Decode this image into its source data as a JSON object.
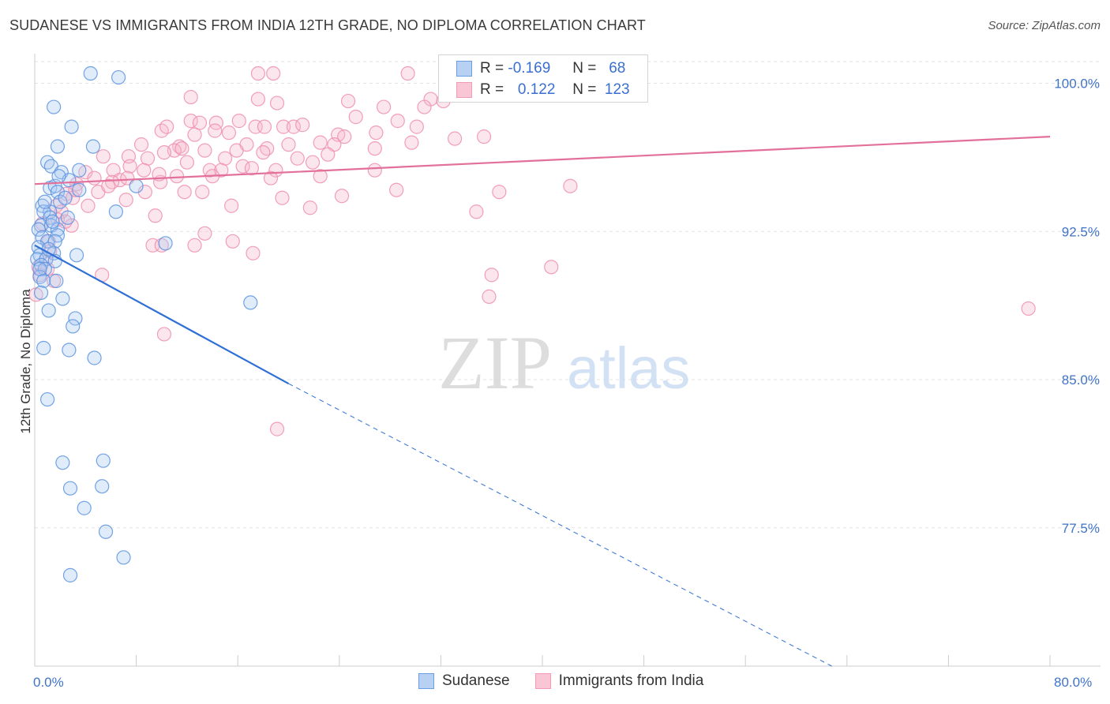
{
  "header": {
    "title": "SUDANESE VS IMMIGRANTS FROM INDIA 12TH GRADE, NO DIPLOMA CORRELATION CHART",
    "source": "Source: ZipAtlas.com"
  },
  "watermark": {
    "zip": "ZIP",
    "atlas": "atlas"
  },
  "legend": {
    "rows": [
      {
        "r_label": "R =",
        "r_value": "-0.169",
        "n_label": "N =",
        "n_value": "68",
        "color": "#6a9ee6"
      },
      {
        "r_label": "R =",
        "r_value": "0.122",
        "n_label": "N =",
        "n_value": "123",
        "color": "#f29ab6"
      }
    ]
  },
  "bottom_legend": [
    {
      "label": "Sudanese",
      "color": "#6a9ee6"
    },
    {
      "label": "Immigrants from India",
      "color": "#f29ab6"
    }
  ],
  "chart_data": {
    "type": "scatter",
    "title": "SUDANESE VS IMMIGRANTS FROM INDIA 12TH GRADE, NO DIPLOMA CORRELATION CHART",
    "xlabel": "",
    "ylabel": "12th Grade, No Diploma",
    "xlim": [
      0,
      80
    ],
    "ylim": [
      70.5,
      101.5
    ],
    "x_tick_labels": [
      "0.0%",
      "80.0%"
    ],
    "y_ticks": [
      77.5,
      85.0,
      92.5,
      100.0
    ],
    "y_tick_labels": [
      "77.5%",
      "85.0%",
      "92.5%",
      "100.0%"
    ],
    "series": [
      {
        "name": "Sudanese",
        "color": "#6a9ee6",
        "trend": {
          "x0": 0,
          "y0": 91.8,
          "x1": 20,
          "y1": 84.8,
          "dashed_to_x": 62.8,
          "dashed_to_y": 70.5
        },
        "points": [
          [
            4.4,
            100.5
          ],
          [
            6.6,
            100.3
          ],
          [
            1.5,
            98.8
          ],
          [
            2.9,
            97.8
          ],
          [
            4.6,
            96.8
          ],
          [
            1.8,
            96.8
          ],
          [
            1.0,
            96.0
          ],
          [
            1.3,
            95.8
          ],
          [
            2.1,
            95.5
          ],
          [
            3.5,
            95.6
          ],
          [
            2.7,
            95.1
          ],
          [
            1.2,
            94.7
          ],
          [
            1.6,
            94.8
          ],
          [
            1.8,
            94.5
          ],
          [
            3.5,
            94.6
          ],
          [
            8.0,
            94.8
          ],
          [
            2.0,
            94.0
          ],
          [
            2.4,
            94.2
          ],
          [
            0.6,
            93.8
          ],
          [
            1.2,
            93.5
          ],
          [
            0.7,
            93.5
          ],
          [
            1.2,
            93.2
          ],
          [
            6.4,
            93.5
          ],
          [
            0.5,
            92.8
          ],
          [
            1.3,
            92.8
          ],
          [
            1.8,
            92.6
          ],
          [
            1.8,
            92.3
          ],
          [
            0.3,
            92.6
          ],
          [
            0.6,
            92.2
          ],
          [
            1.0,
            92.0
          ],
          [
            1.6,
            92.0
          ],
          [
            10.3,
            91.9
          ],
          [
            0.3,
            91.7
          ],
          [
            0.4,
            91.3
          ],
          [
            1.5,
            91.4
          ],
          [
            3.3,
            91.3
          ],
          [
            0.2,
            91.1
          ],
          [
            0.9,
            91.1
          ],
          [
            1.6,
            91.0
          ],
          [
            0.5,
            90.8
          ],
          [
            0.8,
            90.6
          ],
          [
            0.4,
            90.2
          ],
          [
            0.7,
            90.0
          ],
          [
            1.7,
            90.0
          ],
          [
            2.2,
            89.1
          ],
          [
            17.0,
            88.9
          ],
          [
            1.1,
            88.5
          ],
          [
            3.2,
            88.1
          ],
          [
            3.0,
            87.7
          ],
          [
            0.7,
            86.6
          ],
          [
            2.7,
            86.5
          ],
          [
            4.7,
            86.1
          ],
          [
            1.0,
            84.0
          ],
          [
            2.2,
            80.8
          ],
          [
            5.4,
            80.9
          ],
          [
            2.8,
            79.5
          ],
          [
            5.3,
            79.6
          ],
          [
            3.9,
            78.5
          ],
          [
            5.6,
            77.3
          ],
          [
            7.0,
            76.0
          ],
          [
            2.8,
            75.1
          ],
          [
            0.5,
            89.4
          ],
          [
            1.4,
            93.0
          ],
          [
            1.9,
            95.3
          ],
          [
            0.8,
            94.0
          ],
          [
            2.6,
            93.2
          ],
          [
            1.1,
            91.6
          ],
          [
            0.4,
            90.6
          ]
        ]
      },
      {
        "name": "Immigrants from India",
        "color": "#f29ab6",
        "trend": {
          "x0": 0,
          "y0": 94.9,
          "x1": 80,
          "y1": 97.3
        },
        "points": [
          [
            17.6,
            100.5
          ],
          [
            18.8,
            100.5
          ],
          [
            29.4,
            100.5
          ],
          [
            12.3,
            99.3
          ],
          [
            17.6,
            99.2
          ],
          [
            19.1,
            99.0
          ],
          [
            24.7,
            99.1
          ],
          [
            27.5,
            98.8
          ],
          [
            31.2,
            99.2
          ],
          [
            32.2,
            99.1
          ],
          [
            25.3,
            98.3
          ],
          [
            12.3,
            98.1
          ],
          [
            13.0,
            98.0
          ],
          [
            14.3,
            98.0
          ],
          [
            16.1,
            98.1
          ],
          [
            17.4,
            97.8
          ],
          [
            18.1,
            97.8
          ],
          [
            19.6,
            97.8
          ],
          [
            20.4,
            97.8
          ],
          [
            21.1,
            97.9
          ],
          [
            28.6,
            98.1
          ],
          [
            30.1,
            97.8
          ],
          [
            10.0,
            97.6
          ],
          [
            12.6,
            97.4
          ],
          [
            14.2,
            97.6
          ],
          [
            15.3,
            97.5
          ],
          [
            23.9,
            97.4
          ],
          [
            24.4,
            97.3
          ],
          [
            33.1,
            97.2
          ],
          [
            8.4,
            96.9
          ],
          [
            11.4,
            96.8
          ],
          [
            11.0,
            96.6
          ],
          [
            16.7,
            96.9
          ],
          [
            18.3,
            96.7
          ],
          [
            20.0,
            96.9
          ],
          [
            22.5,
            97.0
          ],
          [
            23.6,
            96.9
          ],
          [
            26.8,
            96.7
          ],
          [
            29.7,
            97.0
          ],
          [
            10.2,
            96.5
          ],
          [
            13.4,
            96.6
          ],
          [
            7.4,
            96.3
          ],
          [
            8.9,
            96.2
          ],
          [
            5.4,
            96.3
          ],
          [
            15.0,
            96.2
          ],
          [
            18.0,
            96.5
          ],
          [
            21.9,
            96.0
          ],
          [
            23.1,
            96.4
          ],
          [
            7.5,
            95.8
          ],
          [
            8.6,
            95.6
          ],
          [
            6.2,
            95.6
          ],
          [
            12.0,
            96.0
          ],
          [
            13.8,
            95.6
          ],
          [
            14.7,
            95.6
          ],
          [
            16.4,
            95.8
          ],
          [
            17.1,
            95.7
          ],
          [
            19.0,
            95.6
          ],
          [
            4.0,
            95.5
          ],
          [
            6.7,
            95.1
          ],
          [
            7.3,
            95.2
          ],
          [
            9.9,
            95.0
          ],
          [
            11.2,
            95.3
          ],
          [
            14.0,
            95.3
          ],
          [
            18.6,
            95.2
          ],
          [
            3.3,
            94.9
          ],
          [
            4.7,
            95.2
          ],
          [
            6.1,
            95.0
          ],
          [
            5.0,
            94.5
          ],
          [
            8.7,
            94.5
          ],
          [
            11.8,
            94.5
          ],
          [
            13.2,
            94.5
          ],
          [
            19.5,
            94.2
          ],
          [
            24.2,
            94.3
          ],
          [
            28.5,
            94.6
          ],
          [
            36.6,
            94.5
          ],
          [
            42.2,
            94.8
          ],
          [
            2.5,
            94.4
          ],
          [
            3.0,
            94.2
          ],
          [
            4.2,
            93.8
          ],
          [
            1.7,
            93.8
          ],
          [
            2.1,
            93.5
          ],
          [
            9.5,
            93.3
          ],
          [
            15.5,
            93.8
          ],
          [
            21.7,
            93.7
          ],
          [
            34.8,
            93.5
          ],
          [
            2.9,
            92.8
          ],
          [
            1.8,
            93.1
          ],
          [
            0.6,
            92.9
          ],
          [
            1.1,
            92.0
          ],
          [
            13.4,
            92.4
          ],
          [
            9.3,
            91.8
          ],
          [
            10.0,
            91.8
          ],
          [
            12.6,
            91.8
          ],
          [
            15.6,
            92.0
          ],
          [
            17.2,
            91.4
          ],
          [
            0.9,
            91.1
          ],
          [
            0.3,
            90.7
          ],
          [
            1.0,
            90.6
          ],
          [
            0.4,
            90.3
          ],
          [
            5.3,
            90.3
          ],
          [
            36.0,
            90.3
          ],
          [
            40.7,
            90.7
          ],
          [
            1.5,
            90.0
          ],
          [
            0.1,
            89.3
          ],
          [
            35.8,
            89.2
          ],
          [
            78.3,
            88.6
          ],
          [
            10.2,
            87.3
          ],
          [
            19.1,
            82.5
          ],
          [
            3.2,
            94.6
          ],
          [
            9.8,
            95.4
          ],
          [
            26.8,
            95.6
          ],
          [
            35.4,
            97.3
          ],
          [
            10.4,
            97.8
          ],
          [
            15.9,
            96.6
          ],
          [
            22.5,
            95.3
          ],
          [
            5.8,
            94.8
          ],
          [
            7.2,
            94.1
          ],
          [
            2.4,
            93.0
          ],
          [
            1.2,
            91.5
          ],
          [
            11.6,
            96.7
          ],
          [
            20.7,
            96.2
          ],
          [
            26.9,
            97.5
          ],
          [
            30.7,
            98.8
          ]
        ]
      }
    ]
  }
}
